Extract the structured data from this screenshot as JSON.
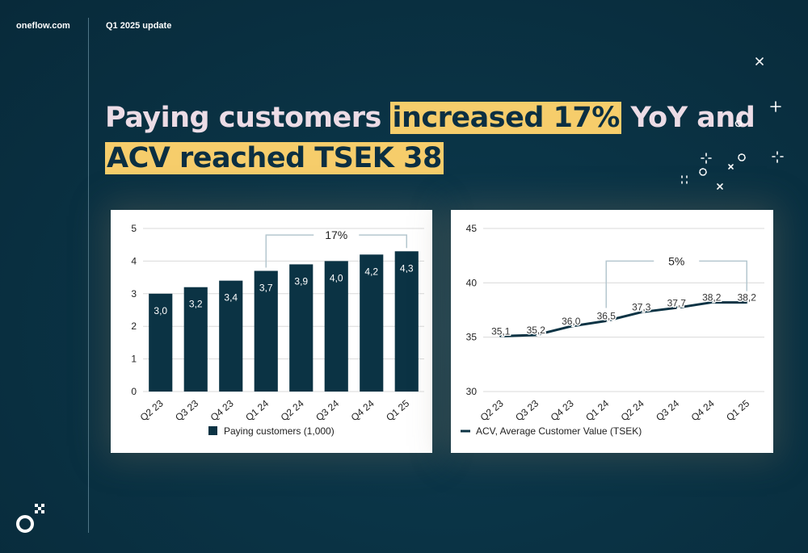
{
  "header": {
    "brand": "oneflow.com",
    "section": "Q1 2025 update"
  },
  "headline": {
    "part1": "Paying customers ",
    "highlight1": "increased 17%",
    "part2": " YoY and",
    "highlight2": "ACV reached TSEK 38"
  },
  "colors": {
    "background": "#0a3345",
    "highlight": "#f6cd6b",
    "headline_text": "#ecdce6",
    "bar": "#0b3344",
    "line": "#0b3344",
    "bracket": "#b5c7cf"
  },
  "icons": [
    "oneflow-logo-icon",
    "sparkle-icon"
  ],
  "chart_data": [
    {
      "type": "bar",
      "categories": [
        "Q2 23",
        "Q3 23",
        "Q4 23",
        "Q1 24",
        "Q2 24",
        "Q3 24",
        "Q4 24",
        "Q1 25"
      ],
      "series": [
        {
          "name": "Paying customers (1,000)",
          "values": [
            3.0,
            3.2,
            3.4,
            3.7,
            3.9,
            4.0,
            4.2,
            4.3
          ]
        }
      ],
      "data_labels": [
        "3,0",
        "3,2",
        "3,4",
        "3,7",
        "3,9",
        "4,0",
        "4,2",
        "4,3"
      ],
      "yticks": [
        "0",
        "1",
        "2",
        "3",
        "4",
        "5"
      ],
      "ylim": [
        0,
        5
      ],
      "grid": true,
      "legend": "bottom",
      "annotation": {
        "text": "17%",
        "from": "Q1 24",
        "to": "Q1 25"
      }
    },
    {
      "type": "line",
      "categories": [
        "Q2 23",
        "Q3 23",
        "Q4 23",
        "Q1 24",
        "Q2 24",
        "Q3 24",
        "Q4 24",
        "Q1 25"
      ],
      "series": [
        {
          "name": "ACV, Average Customer Value (TSEK)",
          "values": [
            35.1,
            35.2,
            36.0,
            36.5,
            37.3,
            37.7,
            38.2,
            38.2
          ]
        }
      ],
      "data_labels": [
        "35,1",
        "35,2",
        "36,0",
        "36,5",
        "37,3",
        "37,7",
        "38,2",
        "38,2"
      ],
      "yticks": [
        "30",
        "35",
        "40",
        "45"
      ],
      "ylim": [
        30,
        45
      ],
      "grid": true,
      "legend": "bottom",
      "annotation": {
        "text": "5%",
        "from": "Q1 24",
        "to": "Q1 25"
      }
    }
  ]
}
